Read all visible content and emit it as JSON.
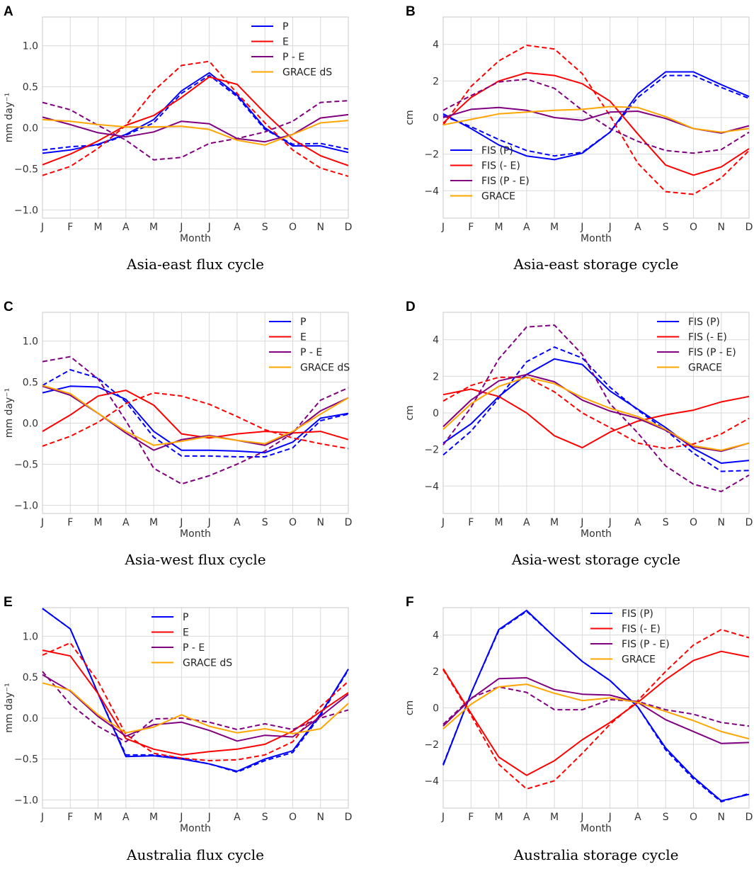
{
  "colors": {
    "P": "#0000ff",
    "E": "#ff0000",
    "PE": "#800080",
    "GRACE": "#ffa500"
  },
  "chart_data": [
    {
      "id": "A",
      "letter": "A",
      "type": "line",
      "title": "Asia-east flux cycle",
      "xlabel": "Month",
      "ylabel": "mm day⁻¹",
      "categories": [
        "J",
        "F",
        "M",
        "A",
        "M",
        "J",
        "J",
        "A",
        "S",
        "O",
        "N",
        "D"
      ],
      "ylim": [
        -1.1,
        1.35
      ],
      "yticks": [
        -1.0,
        -0.5,
        0.0,
        0.5,
        1.0
      ],
      "ytick_labels": [
        "−1.0",
        "−0.5",
        "0.0",
        "0.5",
        "1.0"
      ],
      "legend": {
        "position": "top-center",
        "entries": [
          "P",
          "E",
          "P - E",
          "GRACE dS"
        ]
      },
      "series": [
        {
          "name": "P",
          "color": "P",
          "style": "solid",
          "values": [
            -0.31,
            -0.27,
            -0.2,
            -0.08,
            0.1,
            0.45,
            0.67,
            0.4,
            0.0,
            -0.22,
            -0.22,
            -0.3
          ]
        },
        {
          "name": "P (dashed)",
          "color": "P",
          "style": "dashed",
          "values": [
            -0.27,
            -0.23,
            -0.21,
            -0.09,
            0.06,
            0.42,
            0.64,
            0.38,
            -0.02,
            -0.2,
            -0.19,
            -0.26
          ]
        },
        {
          "name": "E",
          "color": "E",
          "style": "solid",
          "values": [
            -0.45,
            -0.32,
            -0.16,
            0.03,
            0.15,
            0.37,
            0.62,
            0.53,
            0.18,
            -0.14,
            -0.34,
            -0.46
          ]
        },
        {
          "name": "E (dashed)",
          "color": "E",
          "style": "dashed",
          "values": [
            -0.58,
            -0.47,
            -0.25,
            0.03,
            0.45,
            0.76,
            0.81,
            0.42,
            0.06,
            -0.27,
            -0.49,
            -0.59
          ]
        },
        {
          "name": "P - E",
          "color": "PE",
          "style": "solid",
          "values": [
            0.13,
            0.04,
            -0.06,
            -0.11,
            -0.05,
            0.08,
            0.05,
            -0.13,
            -0.17,
            -0.08,
            0.12,
            0.16
          ]
        },
        {
          "name": "P - E (dashed)",
          "color": "PE",
          "style": "dashed",
          "values": [
            0.31,
            0.22,
            0.03,
            -0.15,
            -0.39,
            -0.36,
            -0.19,
            -0.13,
            -0.05,
            0.08,
            0.31,
            0.33
          ]
        },
        {
          "name": "GRACE dS",
          "color": "GRACE",
          "style": "solid",
          "values": [
            0.1,
            0.08,
            0.04,
            0.01,
            0.01,
            0.02,
            -0.02,
            -0.15,
            -0.21,
            -0.08,
            0.06,
            0.09
          ]
        }
      ]
    },
    {
      "id": "B",
      "letter": "B",
      "type": "line",
      "title": "Asia-east storage cycle",
      "xlabel": "Month",
      "ylabel": "cm",
      "categories": [
        "J",
        "F",
        "M",
        "A",
        "M",
        "J",
        "J",
        "A",
        "S",
        "O",
        "N",
        "D"
      ],
      "ylim": [
        -5.5,
        5.5
      ],
      "yticks": [
        -4,
        -2,
        0,
        2,
        4
      ],
      "ytick_labels": [
        "−4",
        "−2",
        "0",
        "2",
        "4"
      ],
      "legend": {
        "position": "bottom-left",
        "entries": [
          "FIS (P)",
          "FIS (- E)",
          "FIS (P - E)",
          "GRACE"
        ]
      },
      "series": [
        {
          "name": "FIS (P)",
          "color": "P",
          "style": "solid",
          "values": [
            0.2,
            -0.6,
            -1.5,
            -2.1,
            -2.3,
            -1.95,
            -0.8,
            1.3,
            2.5,
            2.5,
            1.8,
            1.15
          ]
        },
        {
          "name": "FIS (P) dashed",
          "color": "P",
          "style": "dashed",
          "values": [
            0.1,
            -0.5,
            -1.2,
            -1.8,
            -2.1,
            -1.9,
            -0.8,
            1.1,
            2.3,
            2.3,
            1.65,
            1.05
          ]
        },
        {
          "name": "FIS (- E)",
          "color": "E",
          "style": "solid",
          "values": [
            -0.3,
            1.1,
            2.0,
            2.45,
            2.3,
            1.85,
            0.9,
            -0.9,
            -2.6,
            -3.15,
            -2.7,
            -1.7
          ]
        },
        {
          "name": "FIS (- E) dashed",
          "color": "E",
          "style": "dashed",
          "values": [
            -0.4,
            1.7,
            3.1,
            3.95,
            3.75,
            2.4,
            0.1,
            -2.5,
            -4.05,
            -4.2,
            -3.3,
            -1.8
          ]
        },
        {
          "name": "FIS (P - E)",
          "color": "PE",
          "style": "solid",
          "values": [
            0.0,
            0.45,
            0.55,
            0.4,
            0.0,
            -0.15,
            0.3,
            0.35,
            -0.05,
            -0.6,
            -0.85,
            -0.45
          ]
        },
        {
          "name": "FIS (P - E) dashed",
          "color": "PE",
          "style": "dashed",
          "values": [
            0.4,
            1.2,
            1.95,
            2.1,
            1.6,
            0.4,
            -0.6,
            -1.3,
            -1.8,
            -1.95,
            -1.75,
            -0.8
          ]
        },
        {
          "name": "GRACE",
          "color": "GRACE",
          "style": "solid",
          "values": [
            -0.4,
            -0.1,
            0.2,
            0.3,
            0.4,
            0.45,
            0.6,
            0.55,
            0.05,
            -0.6,
            -0.8,
            -0.6
          ]
        }
      ]
    },
    {
      "id": "C",
      "letter": "C",
      "type": "line",
      "title": "Asia-west flux cycle",
      "xlabel": "Month",
      "ylabel": "mm day⁻¹",
      "categories": [
        "J",
        "F",
        "M",
        "A",
        "M",
        "J",
        "J",
        "A",
        "S",
        "O",
        "N",
        "D"
      ],
      "ylim": [
        -1.1,
        1.35
      ],
      "yticks": [
        -1.0,
        -0.5,
        0.0,
        0.5,
        1.0
      ],
      "ytick_labels": [
        "−1.0",
        "−0.5",
        "0.0",
        "0.5",
        "1.0"
      ],
      "legend": {
        "position": "top-right",
        "entries": [
          "P",
          "E",
          "P - E",
          "GRACE dS"
        ]
      },
      "series": [
        {
          "name": "P",
          "color": "P",
          "style": "solid",
          "values": [
            0.37,
            0.45,
            0.44,
            0.29,
            -0.1,
            -0.33,
            -0.33,
            -0.34,
            -0.36,
            -0.23,
            0.06,
            0.12
          ]
        },
        {
          "name": "P (dashed)",
          "color": "P",
          "style": "dashed",
          "values": [
            0.46,
            0.65,
            0.55,
            0.26,
            -0.17,
            -0.4,
            -0.4,
            -0.41,
            -0.41,
            -0.3,
            0.03,
            0.11
          ]
        },
        {
          "name": "E",
          "color": "E",
          "style": "solid",
          "values": [
            -0.1,
            0.1,
            0.33,
            0.4,
            0.22,
            -0.13,
            -0.18,
            -0.13,
            -0.1,
            -0.12,
            -0.1,
            -0.2
          ]
        },
        {
          "name": "E (dashed)",
          "color": "E",
          "style": "dashed",
          "values": [
            -0.28,
            -0.16,
            0.01,
            0.24,
            0.37,
            0.33,
            0.23,
            0.08,
            -0.08,
            -0.18,
            -0.25,
            -0.31
          ]
        },
        {
          "name": "P - E",
          "color": "PE",
          "style": "solid",
          "values": [
            0.45,
            0.34,
            0.12,
            -0.12,
            -0.33,
            -0.2,
            -0.15,
            -0.21,
            -0.27,
            -0.11,
            0.15,
            0.31
          ]
        },
        {
          "name": "P - E (dashed)",
          "color": "PE",
          "style": "dashed",
          "values": [
            0.75,
            0.81,
            0.54,
            0.03,
            -0.55,
            -0.74,
            -0.64,
            -0.5,
            -0.34,
            -0.12,
            0.28,
            0.43
          ]
        },
        {
          "name": "GRACE dS",
          "color": "GRACE",
          "style": "solid",
          "values": [
            0.46,
            0.36,
            0.12,
            -0.1,
            -0.27,
            -0.22,
            -0.16,
            -0.21,
            -0.25,
            -0.1,
            0.11,
            0.31
          ]
        }
      ]
    },
    {
      "id": "D",
      "letter": "D",
      "type": "line",
      "title": "Asia-west storage cycle",
      "xlabel": "Month",
      "ylabel": "cm",
      "categories": [
        "J",
        "F",
        "M",
        "A",
        "M",
        "J",
        "J",
        "A",
        "S",
        "O",
        "N",
        "D"
      ],
      "ylim": [
        -5.5,
        5.5
      ],
      "yticks": [
        -4,
        -2,
        0,
        2,
        4
      ],
      "ytick_labels": [
        "−4",
        "−2",
        "0",
        "2",
        "4"
      ],
      "legend": {
        "position": "top-right",
        "entries": [
          "FIS (P)",
          "FIS (- E)",
          "FIS (P - E)",
          "GRACE"
        ]
      },
      "series": [
        {
          "name": "FIS (P)",
          "color": "P",
          "style": "solid",
          "values": [
            -1.65,
            -0.6,
            0.9,
            2.1,
            2.95,
            2.65,
            1.2,
            0.2,
            -0.8,
            -1.95,
            -2.75,
            -2.6
          ]
        },
        {
          "name": "FIS (P) dashed",
          "color": "P",
          "style": "dashed",
          "values": [
            -2.3,
            -1.0,
            0.8,
            2.8,
            3.6,
            3.0,
            1.4,
            0.15,
            -0.95,
            -2.2,
            -3.2,
            -3.15
          ]
        },
        {
          "name": "FIS (- E)",
          "color": "E",
          "style": "solid",
          "values": [
            1.0,
            1.3,
            0.9,
            0.0,
            -1.25,
            -1.9,
            -1.05,
            -0.45,
            -0.1,
            0.15,
            0.6,
            0.9
          ]
        },
        {
          "name": "FIS (- E) dashed",
          "color": "E",
          "style": "dashed",
          "values": [
            0.65,
            1.5,
            1.95,
            1.95,
            1.15,
            0.0,
            -0.8,
            -1.65,
            -1.95,
            -1.7,
            -1.15,
            -0.3
          ]
        },
        {
          "name": "FIS (P - E)",
          "color": "PE",
          "style": "solid",
          "values": [
            -0.75,
            0.7,
            1.75,
            2.1,
            1.7,
            0.7,
            0.1,
            -0.3,
            -0.95,
            -1.85,
            -2.1,
            -1.65
          ]
        },
        {
          "name": "FIS (P - E) dashed",
          "color": "PE",
          "style": "dashed",
          "values": [
            -1.75,
            0.3,
            2.95,
            4.7,
            4.8,
            3.2,
            0.5,
            -1.1,
            -2.9,
            -3.9,
            -4.3,
            -3.4
          ]
        },
        {
          "name": "GRACE",
          "color": "GRACE",
          "style": "solid",
          "values": [
            -0.9,
            0.5,
            1.45,
            1.95,
            1.6,
            0.85,
            0.25,
            -0.2,
            -0.9,
            -1.8,
            -2.05,
            -1.65
          ]
        }
      ]
    },
    {
      "id": "E",
      "letter": "E",
      "type": "line",
      "title": "Australia flux cycle",
      "xlabel": "Month",
      "ylabel": "mm day⁻¹",
      "categories": [
        "J",
        "F",
        "M",
        "A",
        "M",
        "J",
        "J",
        "A",
        "S",
        "O",
        "N",
        "D"
      ],
      "ylim": [
        -1.1,
        1.35
      ],
      "yticks": [
        -1.0,
        -0.5,
        0.0,
        0.5,
        1.0
      ],
      "ytick_labels": [
        "−1.0",
        "−0.5",
        "0.0",
        "0.5",
        "1.0"
      ],
      "legend": {
        "position": "top-center",
        "entries": [
          "P",
          "E",
          "P - E",
          "GRACE dS"
        ]
      },
      "series": [
        {
          "name": "P",
          "color": "P",
          "style": "solid",
          "values": [
            1.34,
            1.09,
            0.3,
            -0.47,
            -0.46,
            -0.5,
            -0.56,
            -0.65,
            -0.5,
            -0.4,
            0.05,
            0.6
          ]
        },
        {
          "name": "P (dashed)",
          "color": "P",
          "style": "dashed",
          "values": [
            1.34,
            1.09,
            0.3,
            -0.45,
            -0.45,
            -0.49,
            -0.56,
            -0.66,
            -0.52,
            -0.42,
            0.03,
            0.59
          ]
        },
        {
          "name": "E",
          "color": "E",
          "style": "solid",
          "values": [
            0.83,
            0.76,
            0.3,
            -0.25,
            -0.38,
            -0.45,
            -0.41,
            -0.38,
            -0.32,
            -0.16,
            0.08,
            0.31
          ]
        },
        {
          "name": "E (dashed)",
          "color": "E",
          "style": "dashed",
          "values": [
            0.77,
            0.92,
            0.45,
            -0.2,
            -0.43,
            -0.49,
            -0.52,
            -0.51,
            -0.45,
            -0.29,
            0.14,
            0.45
          ]
        },
        {
          "name": "P - E",
          "color": "PE",
          "style": "solid",
          "values": [
            0.53,
            0.33,
            0.02,
            -0.22,
            -0.08,
            -0.05,
            -0.15,
            -0.28,
            -0.21,
            -0.23,
            0.02,
            0.29
          ]
        },
        {
          "name": "P - E (dashed)",
          "color": "PE",
          "style": "dashed",
          "values": [
            0.57,
            0.17,
            -0.1,
            -0.29,
            -0.01,
            0.0,
            -0.05,
            -0.14,
            -0.07,
            -0.14,
            0.0,
            0.1
          ]
        },
        {
          "name": "GRACE dS",
          "color": "GRACE",
          "style": "solid",
          "values": [
            0.43,
            0.34,
            0.04,
            -0.18,
            -0.11,
            0.04,
            -0.1,
            -0.18,
            -0.13,
            -0.19,
            -0.13,
            0.18
          ]
        }
      ]
    },
    {
      "id": "F",
      "letter": "F",
      "type": "line",
      "title": "Australia storage cycle",
      "xlabel": "Month",
      "ylabel": "cm",
      "categories": [
        "J",
        "F",
        "M",
        "A",
        "M",
        "J",
        "J",
        "A",
        "S",
        "O",
        "N",
        "D"
      ],
      "ylim": [
        -5.5,
        5.5
      ],
      "yticks": [
        -4,
        -2,
        0,
        2,
        4
      ],
      "ytick_labels": [
        "−4",
        "−2",
        "0",
        "2",
        "4"
      ],
      "legend": {
        "position": "top-center",
        "entries": [
          "FIS (P)",
          "FIS (- E)",
          "FIS (P - E)",
          "GRACE"
        ]
      },
      "series": [
        {
          "name": "FIS (P)",
          "color": "P",
          "style": "solid",
          "values": [
            -3.15,
            0.8,
            4.3,
            5.35,
            3.9,
            2.55,
            1.5,
            0.05,
            -2.2,
            -3.8,
            -5.1,
            -4.75
          ]
        },
        {
          "name": "FIS (P) dashed",
          "color": "P",
          "style": "dashed",
          "values": [
            -3.1,
            0.8,
            4.25,
            5.3,
            3.9,
            2.55,
            1.5,
            0.05,
            -2.3,
            -3.9,
            -5.15,
            -4.7
          ]
        },
        {
          "name": "FIS (- E)",
          "color": "E",
          "style": "solid",
          "values": [
            2.15,
            -0.3,
            -2.7,
            -3.7,
            -2.9,
            -1.75,
            -0.8,
            0.3,
            1.55,
            2.6,
            3.1,
            2.8
          ]
        },
        {
          "name": "FIS (- E) dashed",
          "color": "E",
          "style": "dashed",
          "values": [
            2.1,
            -0.4,
            -3.1,
            -4.45,
            -4.0,
            -2.5,
            -0.9,
            0.4,
            2.0,
            3.45,
            4.3,
            3.85
          ]
        },
        {
          "name": "FIS (P - E)",
          "color": "PE",
          "style": "solid",
          "values": [
            -1.0,
            0.5,
            1.6,
            1.65,
            1.0,
            0.75,
            0.7,
            0.3,
            -0.65,
            -1.3,
            -1.95,
            -1.9
          ]
        },
        {
          "name": "FIS (P - E) dashed",
          "color": "PE",
          "style": "dashed",
          "values": [
            -0.9,
            0.55,
            1.15,
            0.85,
            -0.1,
            -0.1,
            0.45,
            0.35,
            -0.1,
            -0.35,
            -0.8,
            -1.0
          ]
        },
        {
          "name": "GRACE",
          "color": "GRACE",
          "style": "solid",
          "values": [
            -1.15,
            0.2,
            1.15,
            1.3,
            0.8,
            0.4,
            0.55,
            0.3,
            -0.2,
            -0.7,
            -1.3,
            -1.7
          ]
        }
      ]
    }
  ]
}
